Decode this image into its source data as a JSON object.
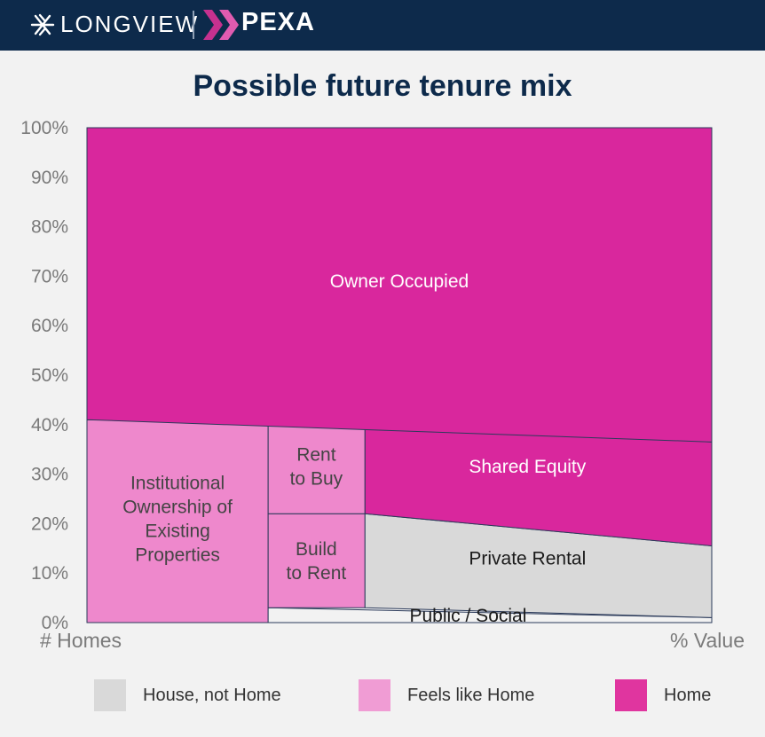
{
  "header": {
    "brand_left": "LONGVIEW",
    "brand_right": "PEXA",
    "bg_color": "#0d2a4b",
    "longview_icon": "longview-logo-icon",
    "pexa_icon": "pexa-x-logo-icon"
  },
  "chart_data": {
    "type": "area",
    "title": "Possible future tenure mix",
    "xlabel_left": "# Homes",
    "xlabel_right": "% Value",
    "y_ticks": [
      "0%",
      "10%",
      "20%",
      "30%",
      "40%",
      "50%",
      "60%",
      "70%",
      "80%",
      "90%",
      "100%"
    ],
    "ylim": [
      0,
      100
    ],
    "grid": false,
    "legend_position": "bottom",
    "colors": {
      "house_not_home": "#d9d9d9",
      "public_social": "#f2f2f2",
      "feels_like_home": "#ee88cc",
      "home": "#d9279d"
    },
    "segments": [
      {
        "label": "Institutional Ownership of Existing Properties",
        "category": "feels_like_home",
        "x": [
          0,
          29
        ],
        "bottom": [
          0,
          0
        ],
        "top": [
          41,
          40.5
        ]
      },
      {
        "label": "Public / Social",
        "category": "public_social",
        "x": [
          29,
          100
        ],
        "bottom": [
          0,
          0
        ],
        "top": [
          3,
          1
        ]
      },
      {
        "label": "Build to Rent",
        "category": "feels_like_home",
        "x": [
          29,
          44.5
        ],
        "bottom": [
          3,
          3
        ],
        "top": [
          22,
          22
        ]
      },
      {
        "label": "Rent to Buy",
        "category": "feels_like_home",
        "x": [
          29,
          44.5
        ],
        "bottom": [
          22,
          22
        ],
        "top": [
          40.5,
          40.5
        ]
      },
      {
        "label": "Private Rental",
        "category": "house_not_home",
        "x": [
          44.5,
          100
        ],
        "bottom": [
          3,
          1
        ],
        "top": [
          22,
          15.5
        ]
      },
      {
        "label": "Shared Equity",
        "category": "home",
        "x": [
          44.5,
          100
        ],
        "bottom": [
          22,
          15.5
        ],
        "top": [
          40.5,
          36.5
        ]
      },
      {
        "label": "Owner Occupied",
        "category": "home",
        "x": [
          0,
          100
        ],
        "bottom": [
          41,
          36.5
        ],
        "top": [
          100,
          100
        ]
      }
    ],
    "legend": [
      {
        "label": "House, not Home",
        "category": "house_not_home"
      },
      {
        "label": "Feels like Home",
        "category": "feels_like_home"
      },
      {
        "label": "Home",
        "category": "home"
      }
    ]
  }
}
